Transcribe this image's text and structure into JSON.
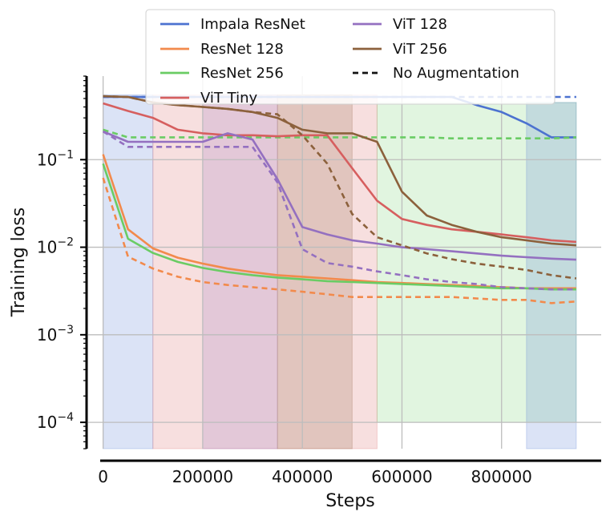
{
  "chart_data": {
    "type": "line",
    "title": "",
    "xlabel": "Steps",
    "ylabel": "Training loss",
    "yscale": "log",
    "xlim": [
      -30000,
      1000000
    ],
    "ylim": [
      5e-05,
      0.9
    ],
    "grid": true,
    "legend_position": "top",
    "x_ticks": [
      0,
      200000,
      400000,
      600000,
      800000
    ],
    "x_tick_labels": [
      "0",
      "200000",
      "400000",
      "600000",
      "800000"
    ],
    "y_ticks": [
      0.0001,
      0.001,
      0.01,
      0.1
    ],
    "y_tick_labels": [
      {
        "base": "10",
        "exp": "−4"
      },
      {
        "base": "10",
        "exp": "−3"
      },
      {
        "base": "10",
        "exp": "−2"
      },
      {
        "base": "10",
        "exp": "−1"
      }
    ],
    "legend": [
      {
        "label": "Impala ResNet",
        "color": "#4c72d0",
        "style": "solid"
      },
      {
        "label": "ResNet 128",
        "color": "#f28a4c",
        "style": "solid"
      },
      {
        "label": "ResNet 256",
        "color": "#6acc64",
        "style": "solid"
      },
      {
        "label": "ViT Tiny",
        "color": "#d65f5f",
        "style": "solid"
      },
      {
        "label": "ViT 128",
        "color": "#9470c0",
        "style": "solid"
      },
      {
        "label": "ViT 256",
        "color": "#8c613c",
        "style": "solid"
      },
      {
        "label": "No Augmentation",
        "color": "#111111",
        "style": "dashed"
      }
    ],
    "x": [
      0,
      50000,
      100000,
      150000,
      200000,
      250000,
      300000,
      350000,
      400000,
      450000,
      500000,
      550000,
      600000,
      650000,
      700000,
      750000,
      800000,
      850000,
      900000,
      950000
    ],
    "series": [
      {
        "name": "Impala ResNet",
        "color": "#4c72d0",
        "style": "solid",
        "values": [
          0.52,
          0.52,
          0.52,
          0.52,
          0.52,
          0.52,
          0.52,
          0.52,
          0.52,
          0.52,
          0.52,
          0.52,
          0.52,
          0.52,
          0.52,
          0.42,
          0.35,
          0.26,
          0.18,
          0.18
        ]
      },
      {
        "name": "Impala ResNet (No Augmentation)",
        "color": "#4c72d0",
        "style": "dashed",
        "values": [
          0.52,
          0.52,
          0.52,
          0.52,
          0.52,
          0.52,
          0.52,
          0.52,
          0.52,
          0.52,
          0.52,
          0.52,
          0.52,
          0.52,
          0.52,
          0.52,
          0.52,
          0.52,
          0.52,
          0.52
        ]
      },
      {
        "name": "ResNet 128",
        "color": "#f28a4c",
        "style": "solid",
        "values": [
          0.115,
          0.016,
          0.0097,
          0.0076,
          0.0065,
          0.0057,
          0.0052,
          0.0048,
          0.0046,
          0.0044,
          0.0042,
          0.004,
          0.0039,
          0.0038,
          0.0037,
          0.0036,
          0.0035,
          0.0034,
          0.0034,
          0.0034
        ]
      },
      {
        "name": "ResNet 128 (No Augmentation)",
        "color": "#f28a4c",
        "style": "dashed",
        "values": [
          0.062,
          0.0078,
          0.0057,
          0.0046,
          0.004,
          0.0037,
          0.0035,
          0.0033,
          0.0031,
          0.0029,
          0.0027,
          0.0027,
          0.0027,
          0.0027,
          0.0027,
          0.0026,
          0.0025,
          0.0025,
          0.0023,
          0.0024
        ]
      },
      {
        "name": "ResNet 256",
        "color": "#6acc64",
        "style": "solid",
        "values": [
          0.09,
          0.0125,
          0.0086,
          0.0068,
          0.0058,
          0.0052,
          0.0048,
          0.0045,
          0.0043,
          0.0041,
          0.004,
          0.0039,
          0.0038,
          0.0037,
          0.0036,
          0.0035,
          0.0034,
          0.0034,
          0.0033,
          0.0033
        ]
      },
      {
        "name": "ResNet 256 (No Augmentation)",
        "color": "#6acc64",
        "style": "dashed",
        "values": [
          0.22,
          0.18,
          0.18,
          0.18,
          0.18,
          0.18,
          0.18,
          0.18,
          0.18,
          0.18,
          0.18,
          0.18,
          0.18,
          0.18,
          0.175,
          0.175,
          0.175,
          0.175,
          0.175,
          0.18
        ]
      },
      {
        "name": "ViT Tiny",
        "color": "#d65f5f",
        "style": "solid",
        "values": [
          0.44,
          0.36,
          0.3,
          0.22,
          0.2,
          0.19,
          0.19,
          0.185,
          0.19,
          0.19,
          0.08,
          0.034,
          0.021,
          0.018,
          0.016,
          0.015,
          0.014,
          0.013,
          0.012,
          0.0115
        ]
      },
      {
        "name": "ViT 128",
        "color": "#9470c0",
        "style": "solid",
        "values": [
          0.21,
          0.16,
          0.16,
          0.16,
          0.16,
          0.2,
          0.17,
          0.06,
          0.017,
          0.014,
          0.012,
          0.011,
          0.01,
          0.0095,
          0.009,
          0.0085,
          0.008,
          0.0077,
          0.0074,
          0.0072
        ]
      },
      {
        "name": "ViT 128 (No Augmentation)",
        "color": "#9470c0",
        "style": "dashed",
        "values": [
          0.21,
          0.14,
          0.14,
          0.14,
          0.14,
          0.14,
          0.14,
          0.055,
          0.0095,
          0.0066,
          0.006,
          0.0053,
          0.0048,
          0.0043,
          0.004,
          0.0038,
          0.0035,
          0.0034,
          0.0033,
          0.0033
        ]
      },
      {
        "name": "ViT 256",
        "color": "#8c613c",
        "style": "solid",
        "values": [
          0.53,
          0.52,
          0.45,
          0.42,
          0.4,
          0.38,
          0.35,
          0.3,
          0.22,
          0.2,
          0.2,
          0.16,
          0.043,
          0.023,
          0.018,
          0.015,
          0.013,
          0.012,
          0.011,
          0.0105
        ]
      },
      {
        "name": "ViT 256 (No Augmentation)",
        "color": "#8c613c",
        "style": "dashed",
        "values": [
          0.53,
          0.52,
          0.45,
          0.42,
          0.4,
          0.38,
          0.35,
          0.33,
          0.19,
          0.09,
          0.024,
          0.013,
          0.0105,
          0.0085,
          0.0073,
          0.0065,
          0.006,
          0.0055,
          0.0048,
          0.0044
        ]
      }
    ],
    "bands": [
      {
        "name": "ResNet 256 range",
        "color": "#6acc64",
        "x": [
          550000,
          950000
        ],
        "y": [
          0.0001,
          0.45
        ]
      },
      {
        "name": "Impala ResNet range",
        "color": "#4c72d0",
        "x": [
          0,
          100000
        ],
        "y": [
          5e-05,
          0.55
        ]
      },
      {
        "name": "Impala ResNet range (late)",
        "color": "#4c72d0",
        "x": [
          850000,
          950000
        ],
        "y": [
          5e-05,
          0.45
        ]
      },
      {
        "name": "ViT Tiny range",
        "color": "#d65f5f",
        "x": [
          100000,
          550000
        ],
        "y": [
          5e-05,
          0.55
        ]
      },
      {
        "name": "ViT 128 range",
        "color": "#9470c0",
        "x": [
          200000,
          350000
        ],
        "y": [
          5e-05,
          0.55
        ]
      },
      {
        "name": "ViT 256 range",
        "color": "#8c613c",
        "x": [
          350000,
          500000
        ],
        "y": [
          5e-05,
          0.55
        ]
      }
    ]
  }
}
